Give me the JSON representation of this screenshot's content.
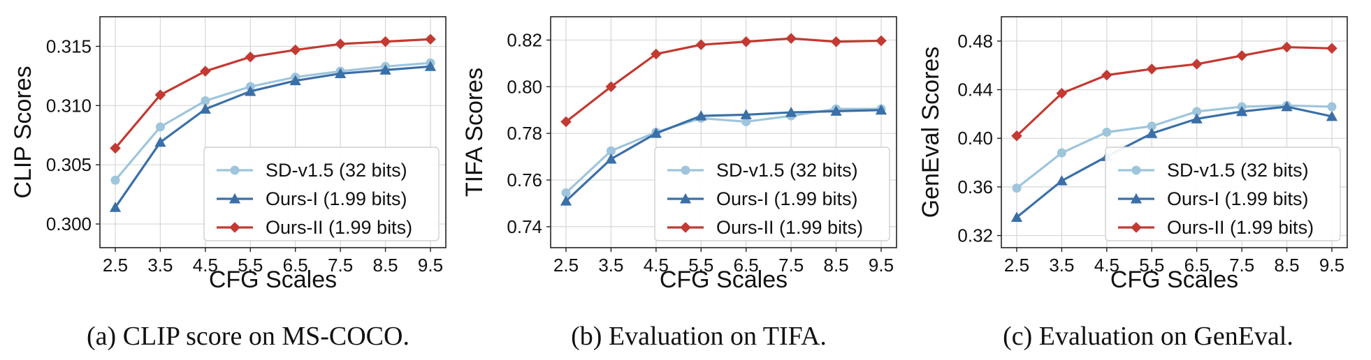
{
  "chart_data": [
    {
      "type": "line",
      "caption": "(a) CLIP score on MS-COCO.",
      "xlabel": "CFG Scales",
      "ylabel": "CLIP Scores",
      "categories": [
        "2.5",
        "3.5",
        "4.5",
        "5.5",
        "6.5",
        "7.5",
        "8.5",
        "9.5"
      ],
      "ylim": [
        0.298,
        0.3175
      ],
      "yticks": [
        0.3,
        0.305,
        0.31,
        0.315
      ],
      "ytick_labels": [
        "0.300",
        "0.305",
        "0.310",
        "0.315"
      ],
      "grid": true,
      "legend_position": "lower-right",
      "series": [
        {
          "name": "SD-v1.5 (32 bits)",
          "color": "#9ec5dc",
          "marker": "circle",
          "values": [
            0.3037,
            0.3082,
            0.3104,
            0.3116,
            0.3124,
            0.3129,
            0.3133,
            0.3136
          ]
        },
        {
          "name": "Ours-I (1.99 bits)",
          "color": "#3a6fa8",
          "marker": "triangle",
          "values": [
            0.3014,
            0.3069,
            0.3097,
            0.3112,
            0.3121,
            0.3127,
            0.313,
            0.3133
          ]
        },
        {
          "name": "Ours-II (1.99 bits)",
          "color": "#c23a32",
          "marker": "diamond",
          "values": [
            0.3064,
            0.3109,
            0.3129,
            0.3141,
            0.3147,
            0.3152,
            0.3154,
            0.3156
          ]
        }
      ]
    },
    {
      "type": "line",
      "caption": "(b) Evaluation on TIFA.",
      "xlabel": "CFG Scales",
      "ylabel": "TIFA Scores",
      "categories": [
        "2.5",
        "3.5",
        "4.5",
        "5.5",
        "6.5",
        "7.5",
        "8.5",
        "9.5"
      ],
      "ylim": [
        0.731,
        0.83
      ],
      "yticks": [
        0.74,
        0.76,
        0.78,
        0.8,
        0.82
      ],
      "ytick_labels": [
        "0.74",
        "0.76",
        "0.78",
        "0.80",
        "0.82"
      ],
      "grid": true,
      "legend_position": "lower-right",
      "series": [
        {
          "name": "SD-v1.5 (32 bits)",
          "color": "#9ec5dc",
          "marker": "circle",
          "values": [
            0.7545,
            0.7725,
            0.7805,
            0.7865,
            0.785,
            0.7875,
            0.7905,
            0.7905
          ]
        },
        {
          "name": "Ours-I (1.99 bits)",
          "color": "#3a6fa8",
          "marker": "triangle",
          "values": [
            0.751,
            0.769,
            0.78,
            0.7875,
            0.788,
            0.789,
            0.7895,
            0.79
          ]
        },
        {
          "name": "Ours-II (1.99 bits)",
          "color": "#c23a32",
          "marker": "diamond",
          "values": [
            0.785,
            0.8,
            0.814,
            0.818,
            0.8193,
            0.8207,
            0.8193,
            0.8197
          ]
        }
      ]
    },
    {
      "type": "line",
      "caption": "(c) Evaluation on GenEval.",
      "xlabel": "CFG Scales",
      "ylabel": "GenEval Scores",
      "categories": [
        "2.5",
        "3.5",
        "4.5",
        "5.5",
        "6.5",
        "7.5",
        "8.5",
        "9.5"
      ],
      "ylim": [
        0.31,
        0.5
      ],
      "yticks": [
        0.32,
        0.36,
        0.4,
        0.44,
        0.48
      ],
      "ytick_labels": [
        "0.32",
        "0.36",
        "0.40",
        "0.44",
        "0.48"
      ],
      "grid": true,
      "legend_position": "lower-right",
      "series": [
        {
          "name": "SD-v1.5 (32 bits)",
          "color": "#9ec5dc",
          "marker": "circle",
          "values": [
            0.359,
            0.388,
            0.405,
            0.41,
            0.422,
            0.426,
            0.427,
            0.426
          ]
        },
        {
          "name": "Ours-I (1.99 bits)",
          "color": "#3a6fa8",
          "marker": "triangle",
          "values": [
            0.335,
            0.365,
            0.385,
            0.404,
            0.416,
            0.422,
            0.426,
            0.418
          ]
        },
        {
          "name": "Ours-II (1.99 bits)",
          "color": "#c23a32",
          "marker": "diamond",
          "values": [
            0.402,
            0.437,
            0.452,
            0.457,
            0.461,
            0.468,
            0.475,
            0.474
          ]
        }
      ]
    }
  ]
}
